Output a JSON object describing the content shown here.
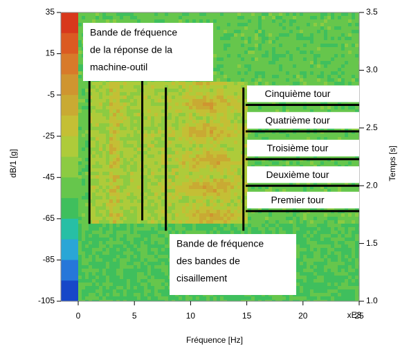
{
  "chart_data": {
    "type": "spectrogram",
    "x_label": "Fréquence [Hz]",
    "x_scale_label": "xE3",
    "y_label": "dB/1 [g]",
    "y2_label": "Temps [s]",
    "xlim": [
      0,
      25
    ],
    "xticks": [
      0,
      5,
      10,
      15,
      20,
      25
    ],
    "ylim": [
      -105,
      35
    ],
    "yticks": [
      -105,
      -85,
      -65,
      -45,
      -25,
      -5,
      15,
      35
    ],
    "y2lim": [
      1,
      3.5
    ],
    "y2ticks": [
      {
        "value": 1,
        "label": "1.0"
      },
      1.5,
      {
        "value": 2,
        "label": "2.0"
      },
      2.5,
      {
        "value": 3,
        "label": "3.0"
      },
      3.5
    ],
    "colormap": [
      "#d8381c",
      "#db5a22",
      "#d87a2a",
      "#cf9530",
      "#c9aa33",
      "#c4bf35",
      "#aecb3a",
      "#8ccb42",
      "#66c64c",
      "#3fbf5d",
      "#27bfa5",
      "#2aa6d6",
      "#2677d9",
      "#1747c8"
    ],
    "band_lines": [
      {
        "x": 1,
        "t": [
          1.67,
          2.91
        ]
      },
      {
        "x": 5.7,
        "t": [
          1.7,
          2.91
        ]
      },
      {
        "x": 7.8,
        "t": [
          1.61,
          2.85
        ]
      },
      {
        "x": 14.7,
        "t": [
          1.61,
          2.85
        ]
      }
    ],
    "turns": [
      {
        "label": "Cinquième tour",
        "t": 2.7,
        "x": [
          14.9,
          25
        ]
      },
      {
        "label": "Quatrième tour",
        "t": 2.47,
        "x": [
          14.9,
          25
        ]
      },
      {
        "label": "Troisième tour",
        "t": 2.23,
        "x": [
          14.9,
          25
        ]
      },
      {
        "label": "Deuxième tour",
        "t": 2.0,
        "x": [
          14.9,
          25
        ]
      },
      {
        "label": "Premier tour",
        "t": 1.78,
        "x": [
          14.9,
          25
        ]
      }
    ],
    "notes": [
      {
        "lines": [
          "Bande de fréquence",
          "de la réponse de la",
          "machine-outil"
        ]
      },
      {
        "lines": [
          "Bande de fréquence",
          "des bandes de",
          "cisaillement"
        ]
      }
    ]
  }
}
